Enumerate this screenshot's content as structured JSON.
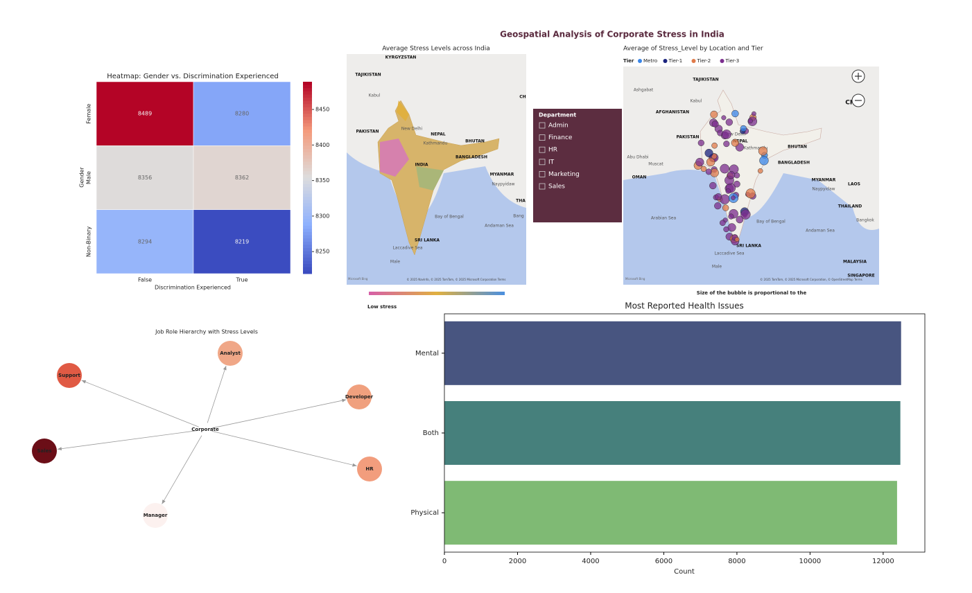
{
  "title": "Geospatial Analysis of Corporate Stress in India",
  "chart_data": [
    {
      "type": "heatmap",
      "title": "Heatmap: Gender vs. Discrimination Experienced",
      "x_label": "Discrimination Experienced",
      "y_label": "Gender",
      "categories": [
        "False",
        "True"
      ],
      "rows": [
        "Female",
        "Male",
        "Non-Binary"
      ],
      "values": [
        [
          8489,
          8280
        ],
        [
          8356,
          8362
        ],
        [
          8294,
          8219
        ]
      ],
      "zlim": [
        8219,
        8489
      ],
      "zticks": [
        8250,
        8300,
        8350,
        8400,
        8450
      ],
      "colormap": "coolwarm"
    },
    {
      "type": "network",
      "title": "Job Role Hierarchy with Stress Levels",
      "nodes": [
        {
          "label": "Corporate",
          "color": "#ffffff"
        },
        {
          "label": "Analyst",
          "color": "#f0a787"
        },
        {
          "label": "Support",
          "color": "#e05a44"
        },
        {
          "label": "Developer",
          "color": "#f0a07e"
        },
        {
          "label": "Sales",
          "color": "#6b0e17"
        },
        {
          "label": "HR",
          "color": "#f29d7d"
        },
        {
          "label": "Manager",
          "color": "#fcf1ef"
        }
      ],
      "edges": [
        [
          0,
          1
        ],
        [
          0,
          2
        ],
        [
          0,
          3
        ],
        [
          0,
          4
        ],
        [
          0,
          5
        ],
        [
          0,
          6
        ]
      ]
    },
    {
      "type": "barh",
      "title": "Most Reported Health Issues",
      "x_label": "Count",
      "categories": [
        "Mental",
        "Both",
        "Physical"
      ],
      "values": [
        12490,
        12470,
        12380
      ],
      "colors": [
        "#485580",
        "#46807c",
        "#7fba74"
      ],
      "xlim": [
        0,
        13140
      ],
      "xticks": [
        0,
        2000,
        4000,
        6000,
        8000,
        10000,
        12000
      ]
    }
  ],
  "map1": {
    "title": "Average Stress Levels across India",
    "labels": [
      "KYRGYZSTAN",
      "TAJIKISTAN",
      "Kabul",
      "PAKISTAN",
      "New Delhi",
      "NEPAL",
      "Kathmandu",
      "BHUTAN",
      "INDIA",
      "BANGLADESH",
      "MYANMAR",
      "Naypyidaw",
      "Bay of Bengal",
      "Andaman Sea",
      "SRI LANKA",
      "Laccadive Sea",
      "Male",
      "THA",
      "Bang",
      "CH"
    ],
    "legend": "Low stress",
    "attribution": "© 2025 NavInfo, © 2025 TomTom, © 2025 Microsoft Corporation  Terms",
    "brand": "Microsoft Bing"
  },
  "slicer": {
    "title": "Department",
    "options": [
      "Admin",
      "Finance",
      "HR",
      "IT",
      "Marketing",
      "Sales"
    ]
  },
  "map2": {
    "title": "Average of Stress_Level by Location and Tier",
    "legend_title": "Tier",
    "tiers": [
      {
        "name": "Metro",
        "color": "#3a86e8"
      },
      {
        "name": "Tier-1",
        "color": "#1a237e"
      },
      {
        "name": "Tier-2",
        "color": "#e07b4a"
      },
      {
        "name": "Tier-3",
        "color": "#7b2d8e"
      }
    ],
    "labels": [
      "Ashgabat",
      "TAJIKISTAN",
      "AFGHANISTAN",
      "Kabul",
      "PAKISTAN",
      "New Delhi",
      "NEPAL",
      "Kathmandu",
      "BHUTAN",
      "Abu Dhabi",
      "Muscat",
      "OMAN",
      "BANGLADESH",
      "MYANMAR",
      "Naypyidaw",
      "LAOS",
      "THAILAND",
      "Bangkok",
      "Arabian Sea",
      "Bay of Bengal",
      "Andaman Sea",
      "SRI LANKA",
      "Laccadive Sea",
      "Male",
      "MALAYSIA",
      "SINGAPORE",
      "CHI"
    ],
    "caption": "Size of the bubble is proportional to the",
    "attribution": "© 2025 TomTom, © 2025 Microsoft Corporation, © OpenStreetMap  Terms",
    "brand": "Microsoft Bing"
  }
}
